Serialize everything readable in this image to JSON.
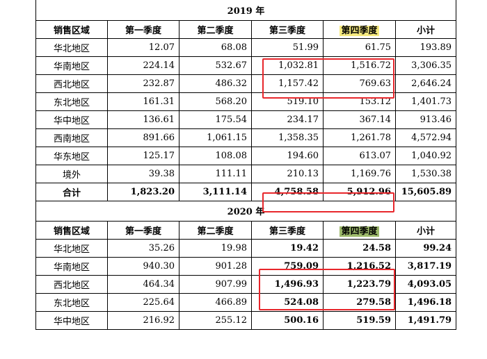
{
  "tables": [
    {
      "year_title": "2019 年",
      "headers": [
        "销售区域",
        "第一季度",
        "第二季度",
        "第三季度",
        "第四季度",
        "小计"
      ],
      "rows": [
        [
          "华北地区",
          "12.07",
          "68.08",
          "51.99",
          "61.75",
          "193.89"
        ],
        [
          "华南地区",
          "224.14",
          "532.67",
          "1,032.81",
          "1,516.72",
          "3,306.35"
        ],
        [
          "西北地区",
          "232.87",
          "486.32",
          "1,157.42",
          "769.63",
          "2,646.24"
        ],
        [
          "东北地区",
          "161.31",
          "568.20",
          "519.10",
          "153.12",
          "1,401.73"
        ],
        [
          "华中地区",
          "136.61",
          "175.54",
          "234.17",
          "367.14",
          "913.46"
        ],
        [
          "西南地区",
          "891.66",
          "1,061.15",
          "1,358.35",
          "1,261.78",
          "4,572.94"
        ],
        [
          "华东地区",
          "125.17",
          "108.08",
          "194.60",
          "613.07",
          "1,040.92"
        ],
        [
          "境外",
          "39.38",
          "111.11",
          "210.13",
          "1,169.76",
          "1,530.38"
        ]
      ],
      "total": [
        "合计",
        "1,823.20",
        "3,111.14",
        "4,758.58",
        "5,912.96",
        "15,605.89"
      ]
    },
    {
      "year_title": "2020 年",
      "headers": [
        "销售区域",
        "第一季度",
        "第二季度",
        "第三季度",
        "第四季度",
        "小计"
      ],
      "rows": [
        [
          "华北地区",
          "35.26",
          "19.98",
          "19.42",
          "24.58",
          "99.24"
        ],
        [
          "华南地区",
          "940.30",
          "901.28",
          "759.09",
          "1,216.52",
          "3,817.19"
        ],
        [
          "西北地区",
          "464.34",
          "907.99",
          "1,496.93",
          "1,223.79",
          "4,093.05"
        ],
        [
          "东北地区",
          "225.64",
          "466.89",
          "524.08",
          "279.58",
          "1,496.18"
        ],
        [
          "华中地区",
          "216.92",
          "255.12",
          "500.16",
          "519.59",
          "1,491.79"
        ]
      ]
    }
  ],
  "highlight_colors": {
    "q4_header_2019": "#f6ea7e",
    "q4_header_2020": "#9dba6b",
    "annotation_box": "#e8262b"
  }
}
